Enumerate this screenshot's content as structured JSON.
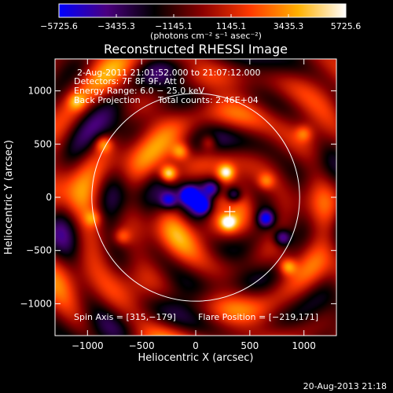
{
  "chart_data": {
    "type": "heatmap",
    "title": "Reconstructed RHESSI Image",
    "xlabel": "Heliocentric X (arcsec)",
    "ylabel": "Heliocentric Y (arcsec)",
    "xlim": [
      -1300,
      1300
    ],
    "ylim": [
      -1300,
      1300
    ],
    "x_ticks": [
      -1000,
      -500,
      0,
      500,
      1000
    ],
    "y_ticks": [
      -1000,
      -500,
      0,
      500,
      1000
    ],
    "x_tick_labels": [
      "−1000",
      "−500",
      "0",
      "500",
      "1000"
    ],
    "y_tick_labels": [
      "−1000",
      "−500",
      "0",
      "500",
      "1000"
    ],
    "colorbar": {
      "tick_labels": [
        "−5725.6",
        "−3435.3",
        "−1145.1",
        "1145.1",
        "3435.3",
        "5725.6"
      ],
      "range": [
        -5725.6,
        5725.6
      ],
      "unit_label": "(photons cm⁻² s⁻¹ asec⁻²)",
      "colors": [
        "#0000ff",
        "#4b007f",
        "#000000",
        "#8b0000",
        "#ff3a00",
        "#ffb000",
        "#ffffff"
      ]
    },
    "annotations": {
      "time_range": "2-Aug-2011 21:01:52.000 to 21:07:12.000",
      "detectors": "Detectors: 7F 8F 9F, Att 0",
      "energy_range": "Energy Range: 6.0 − 25.0 keV",
      "algorithm": "Back Projection",
      "total_counts": "Total counts: 2.46E+04",
      "spin_axis": "Spin Axis = [315,−179]",
      "flare_position": "Flare Position = [−219,171]"
    },
    "solar_limb_radius_arcsec": 960,
    "flare_marker_xy": [
      315,
      -135
    ],
    "bright_sources": [
      {
        "x": -250,
        "y": 220,
        "v": 5700
      },
      {
        "x": 280,
        "y": 230,
        "v": 5200
      },
      {
        "x": 300,
        "y": -230,
        "v": 4800
      },
      {
        "x": -140,
        "y": 430,
        "v": 3200
      },
      {
        "x": 120,
        "y": 520,
        "v": 3000
      },
      {
        "x": 850,
        "y": -650,
        "v": 3800
      },
      {
        "x": -850,
        "y": 500,
        "v": 3500
      },
      {
        "x": -680,
        "y": -370,
        "v": 2600
      },
      {
        "x": 650,
        "y": 150,
        "v": 2600
      },
      {
        "x": -950,
        "y": -200,
        "v": 2600
      },
      {
        "x": 1000,
        "y": 600,
        "v": 2400
      },
      {
        "x": -1100,
        "y": 900,
        "v": 2600
      }
    ],
    "dark_sources": [
      {
        "x": -60,
        "y": 20,
        "v": -5500
      },
      {
        "x": 60,
        "y": -80,
        "v": -5200
      },
      {
        "x": 350,
        "y": 20,
        "v": -4800
      },
      {
        "x": 650,
        "y": -200,
        "v": -4800
      },
      {
        "x": 800,
        "y": -380,
        "v": -4200
      },
      {
        "x": -250,
        "y": -30,
        "v": -4000
      },
      {
        "x": 150,
        "y": 80,
        "v": -3600
      }
    ]
  },
  "footer": {
    "timestamp": "20-Aug-2013 21:18"
  }
}
